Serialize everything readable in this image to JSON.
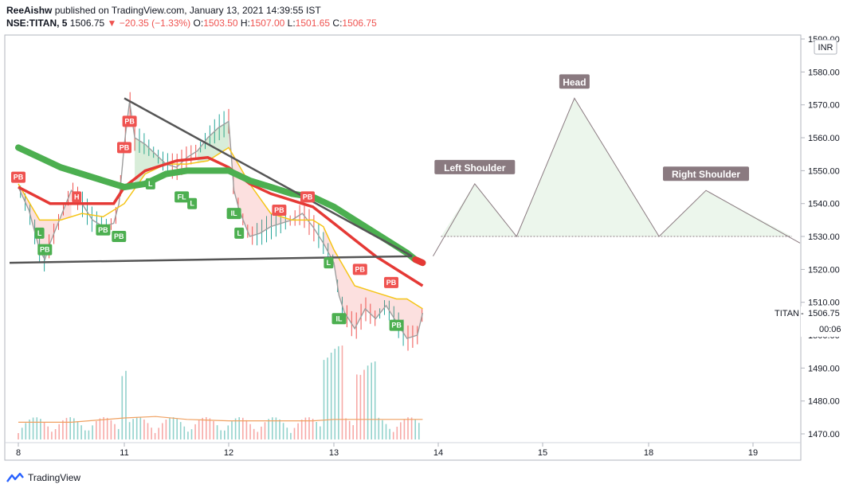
{
  "header": {
    "author": "ReeAishw",
    "published": "published on TradingView.com, January 13, 2021 14:39:55 IST",
    "symbol": "NSE:TITAN, 5",
    "last": "1506.75",
    "arrow": "▼",
    "change": "−20.35 (−1.33%)",
    "o_label": "O:",
    "o": "1503.50",
    "h_label": "H:",
    "h": "1507.00",
    "l_label": "L:",
    "l": "1501.65",
    "c_label": "C:",
    "c": "1506.75"
  },
  "colors": {
    "green": "#4caf50",
    "red": "#ef5350",
    "thick_red": "#e53935",
    "yellow": "#f5c518",
    "orange": "#f0a060",
    "grey": "#555555",
    "pattern": "#8a7a80"
  },
  "chart_data": {
    "type": "line",
    "title": "",
    "xlabel": "",
    "ylabel": "",
    "currency": "INR",
    "y_ticks": [
      "1590.00",
      "1580.00",
      "1570.00",
      "1560.00",
      "1550.00",
      "1540.00",
      "1530.00",
      "1520.00",
      "1510.00",
      "1500.00",
      "1490.00",
      "1480.00",
      "1470.00"
    ],
    "ylim": [
      1467,
      1593
    ],
    "x_ticks": [
      "8",
      "11",
      "12",
      "13",
      "14",
      "15",
      "18",
      "19"
    ],
    "last_price": {
      "symbol": "TITAN",
      "value": "1506.75",
      "countdown": "00:06"
    },
    "price": {
      "x": [
        0.0,
        0.1,
        0.2,
        0.25,
        0.3,
        0.4,
        0.5,
        0.6,
        0.7,
        0.8,
        0.9,
        0.95,
        1.0,
        1.05,
        1.1,
        1.2,
        1.3,
        1.4,
        1.5,
        1.6,
        1.7,
        1.8,
        1.9,
        2.0,
        2.05,
        2.1,
        2.2,
        2.3,
        2.4,
        2.5,
        2.6,
        2.7,
        2.8,
        2.9,
        3.0,
        3.05,
        3.1,
        3.2,
        3.3,
        3.4,
        3.5,
        3.6,
        3.7,
        3.8,
        3.85
      ],
      "values": [
        1545,
        1538,
        1526,
        1523,
        1528,
        1536,
        1544,
        1540,
        1535,
        1533,
        1534,
        1540,
        1558,
        1571,
        1560,
        1558,
        1555,
        1552,
        1551,
        1554,
        1556,
        1560,
        1563,
        1565,
        1544,
        1538,
        1530,
        1531,
        1533,
        1534,
        1535,
        1537,
        1533,
        1528,
        1522,
        1512,
        1507,
        1502,
        1508,
        1505,
        1509,
        1504,
        1499,
        1500,
        1506.75
      ]
    },
    "ema_green": {
      "x": [
        0.0,
        0.2,
        0.4,
        0.6,
        0.8,
        1.0,
        1.2,
        1.4,
        1.6,
        1.8,
        2.0,
        2.2,
        2.4,
        2.6,
        2.8,
        3.0,
        3.2,
        3.4,
        3.6,
        3.7,
        3.78,
        3.85
      ],
      "values": [
        1557,
        1554,
        1551,
        1549,
        1547,
        1545,
        1546,
        1549,
        1550,
        1550,
        1550,
        1547,
        1545,
        1543,
        1542,
        1539,
        1535,
        1531,
        1527,
        1525,
        1523,
        1522
      ]
    },
    "ema_red": {
      "x": [
        0.0,
        0.3,
        0.6,
        0.9,
        1.0,
        1.2,
        1.5,
        1.8,
        2.0,
        2.2,
        2.4,
        2.6,
        2.8,
        3.0,
        3.2,
        3.4,
        3.6,
        3.7,
        3.85
      ],
      "values": [
        1545,
        1540,
        1540,
        1540,
        1545,
        1550,
        1553,
        1554,
        1551,
        1546,
        1543,
        1541,
        1539,
        1534,
        1529,
        1524,
        1520,
        1518,
        1515
      ]
    },
    "ema_yellow": {
      "x": [
        0.0,
        0.2,
        0.4,
        0.6,
        0.8,
        1.0,
        1.2,
        1.4,
        1.6,
        1.8,
        2.0,
        2.2,
        2.4,
        2.6,
        2.8,
        2.9,
        3.0,
        3.2,
        3.4,
        3.6,
        3.7,
        3.85
      ],
      "values": [
        1546,
        1535,
        1535,
        1537,
        1536,
        1540,
        1549,
        1552,
        1552,
        1553,
        1557,
        1546,
        1537,
        1535,
        1535,
        1533,
        1526,
        1515,
        1513,
        1511,
        1511,
        1508
      ]
    },
    "volume_ma": {
      "x": [
        0.0,
        0.5,
        1.0,
        1.3,
        1.6,
        2.0,
        2.4,
        2.8,
        3.0,
        3.4,
        3.85
      ],
      "values": [
        0.12,
        0.12,
        0.15,
        0.16,
        0.14,
        0.13,
        0.13,
        0.13,
        0.14,
        0.14,
        0.14
      ]
    },
    "triangle": {
      "upper": {
        "x": [
          1.0,
          3.75
        ],
        "values": [
          1572,
          1524
        ]
      },
      "lower": {
        "x": [
          -0.1,
          3.75
        ],
        "values": [
          1522,
          1524
        ]
      }
    },
    "markers": [
      {
        "label": "PB",
        "color": "red",
        "x": 0.0,
        "y": 1548
      },
      {
        "label": "H",
        "color": "red",
        "x": 0.55,
        "y": 1542
      },
      {
        "label": "L",
        "color": "green",
        "x": 0.2,
        "y": 1531
      },
      {
        "label": "PB",
        "color": "green",
        "x": 0.25,
        "y": 1526
      },
      {
        "label": "PB",
        "color": "green",
        "x": 0.8,
        "y": 1532
      },
      {
        "label": "PB",
        "color": "green",
        "x": 0.95,
        "y": 1530
      },
      {
        "label": "PB",
        "color": "red",
        "x": 1.05,
        "y": 1565
      },
      {
        "label": "PB",
        "color": "red",
        "x": 1.0,
        "y": 1557
      },
      {
        "label": "L",
        "color": "green",
        "x": 1.25,
        "y": 1546
      },
      {
        "label": "FL",
        "color": "green",
        "x": 1.55,
        "y": 1542
      },
      {
        "label": "L",
        "color": "green",
        "x": 1.65,
        "y": 1540
      },
      {
        "label": "IL",
        "color": "green",
        "x": 2.05,
        "y": 1537
      },
      {
        "label": "L",
        "color": "green",
        "x": 2.1,
        "y": 1531
      },
      {
        "label": "PB",
        "color": "red",
        "x": 2.48,
        "y": 1538
      },
      {
        "label": "PB",
        "color": "red",
        "x": 2.75,
        "y": 1542
      },
      {
        "label": "L",
        "color": "green",
        "x": 2.95,
        "y": 1522
      },
      {
        "label": "PB",
        "color": "red",
        "x": 3.25,
        "y": 1520
      },
      {
        "label": "PB",
        "color": "red",
        "x": 3.55,
        "y": 1516
      },
      {
        "label": "IL",
        "color": "green",
        "x": 3.05,
        "y": 1505
      },
      {
        "label": "PB",
        "color": "green",
        "x": 3.6,
        "y": 1503
      }
    ],
    "head_shoulders": {
      "x": [
        3.95,
        4.35,
        4.75,
        5.3,
        6.1,
        6.55,
        7.45
      ],
      "values": [
        1524,
        1546,
        1530,
        1572,
        1530,
        1544,
        1528
      ],
      "neckline": {
        "x": [
          3.95,
          7.45
        ],
        "value": 1530
      },
      "labels": [
        {
          "text": "Left Shoulder",
          "x": 4.35,
          "y": 1546
        },
        {
          "text": "Head",
          "x": 5.3,
          "y": 1572
        },
        {
          "text": "Right Shoulder",
          "x": 6.55,
          "y": 1544
        }
      ]
    }
  },
  "footer": {
    "brand": "TradingView"
  }
}
